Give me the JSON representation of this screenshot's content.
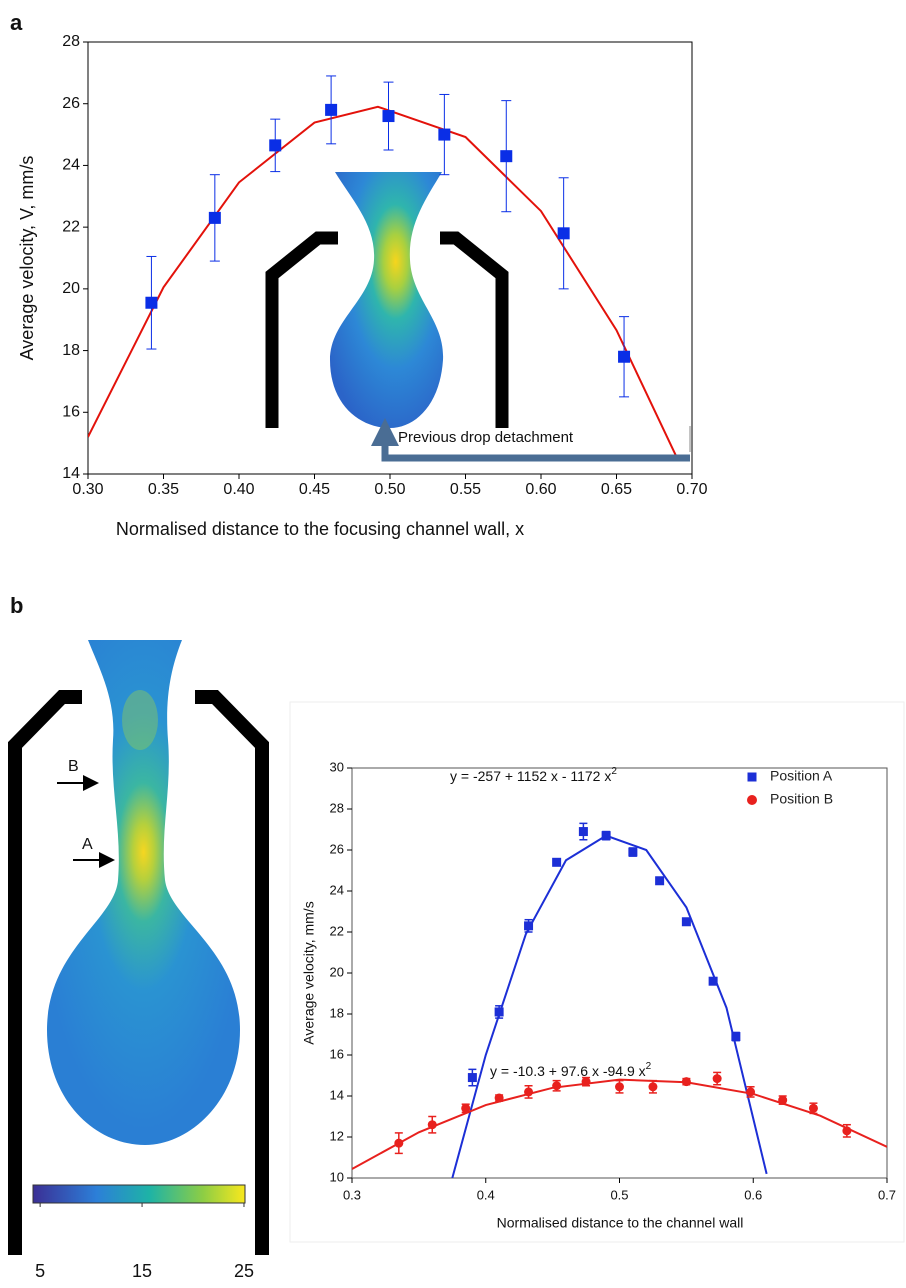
{
  "figure": {
    "panel_labels": [
      "a",
      "b"
    ],
    "arrow_labels": [
      "B",
      "A"
    ],
    "colorbar": {
      "lim": [
        4.3,
        25.1
      ],
      "ticks": [
        5,
        15,
        25
      ]
    }
  },
  "chart_data": [
    {
      "type": "scatter",
      "xlabel": "Normalised distance to the focusing channel wall, x",
      "ylabel": "Average velocity, V, mm/s",
      "x": [
        0.342,
        0.384,
        0.424,
        0.461,
        0.499,
        0.536,
        0.577,
        0.615,
        0.655
      ],
      "values": [
        19.55,
        22.3,
        24.65,
        25.8,
        25.6,
        25.0,
        24.3,
        21.8,
        17.8
      ],
      "errors": [
        1.5,
        1.4,
        0.85,
        1.1,
        1.1,
        1.3,
        1.8,
        1.8,
        1.3
      ],
      "color": "#0a2ee6",
      "fit": {
        "x": [
          0.3,
          0.35,
          0.4,
          0.45,
          0.492,
          0.55,
          0.6,
          0.65,
          0.69
        ],
        "values": [
          15.2,
          20.05,
          23.45,
          25.39,
          25.9,
          24.92,
          22.52,
          18.66,
          14.53
        ],
        "color": "#e3120b"
      },
      "annotation": "Previous drop detachment",
      "xlim": [
        0.3,
        0.7
      ],
      "xticks": [
        {
          "value": 0.3,
          "label": "0.30"
        },
        0.35,
        {
          "value": 0.4,
          "label": "0.40"
        },
        0.45,
        {
          "value": 0.5,
          "label": "0.50"
        },
        0.55,
        {
          "value": 0.6,
          "label": "0.60"
        },
        0.65,
        {
          "value": 0.7,
          "label": "0.70"
        }
      ],
      "ylim": [
        14,
        28
      ],
      "yticks": [
        14,
        16,
        18,
        20,
        22,
        24,
        26,
        28
      ]
    },
    {
      "type": "scatter",
      "xlabel": "Normalised distance to the channel wall",
      "ylabel": "Average velocity, mm/s",
      "legend": "upper right",
      "series": [
        {
          "name": "Position A",
          "color": "#1c2fd6",
          "marker": "square",
          "x": [
            0.39,
            0.41,
            0.432,
            0.453,
            0.473,
            0.49,
            0.51,
            0.53,
            0.55,
            0.57,
            0.587
          ],
          "values": [
            14.9,
            18.1,
            22.3,
            25.4,
            26.9,
            26.7,
            25.9,
            24.5,
            22.5,
            19.6,
            16.9
          ],
          "errors": [
            0.4,
            0.3,
            0.3,
            0.15,
            0.4,
            0.2,
            0.2,
            0.15,
            0.15,
            0.15,
            0.2
          ],
          "fit": {
            "x": [
              0.375,
              0.4,
              0.43,
              0.46,
              0.49,
              0.52,
              0.55,
              0.58,
              0.61
            ],
            "values": [
              10,
              16,
              21.9,
              25.5,
              26.7,
              26.0,
              23.2,
              18.3,
              10.2
            ]
          },
          "equation": {
            "text": "y = -257 + 1152 x - 1172 x",
            "superscript": "2"
          }
        },
        {
          "name": "Position B",
          "color": "#e8211e",
          "marker": "circle",
          "x": [
            0.335,
            0.36,
            0.385,
            0.41,
            0.432,
            0.453,
            0.475,
            0.5,
            0.525,
            0.55,
            0.573,
            0.598,
            0.622,
            0.645,
            0.67
          ],
          "values": [
            11.7,
            12.6,
            13.4,
            13.9,
            14.2,
            14.5,
            14.7,
            14.45,
            14.45,
            14.7,
            14.85,
            14.2,
            13.8,
            13.4,
            12.3
          ],
          "errors": [
            0.5,
            0.4,
            0.2,
            0.15,
            0.3,
            0.25,
            0.2,
            0.3,
            0.3,
            0.15,
            0.3,
            0.25,
            0.2,
            0.25,
            0.3
          ],
          "fit": {
            "x": [
              0.3,
              0.35,
              0.4,
              0.45,
              0.5,
              0.55,
              0.6,
              0.65,
              0.7
            ],
            "values": [
              10.44,
              12.23,
              13.56,
              14.4,
              14.8,
              14.67,
              14.1,
              13.04,
              11.52
            ]
          },
          "equation": {
            "text": "y = -10.3 + 97.6 x -94.9 x",
            "superscript": "2"
          }
        }
      ],
      "xlim": [
        0.3,
        0.7
      ],
      "xticks": [
        0.3,
        0.4,
        0.5,
        0.6,
        0.7
      ],
      "ylim": [
        10,
        30
      ],
      "yticks": [
        10,
        12,
        14,
        16,
        18,
        20,
        22,
        24,
        26,
        28,
        30
      ]
    }
  ]
}
